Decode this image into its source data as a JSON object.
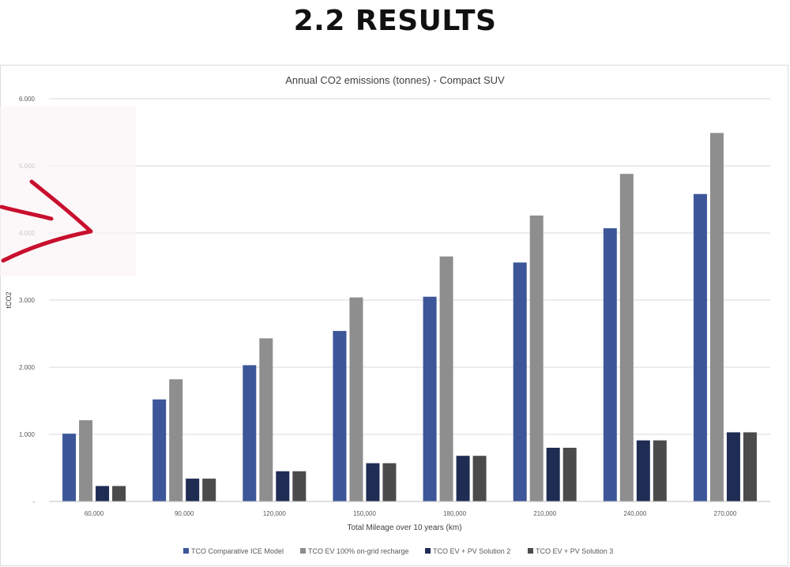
{
  "page_heading": "2.2 RESULTS",
  "colors": {
    "series": [
      "#3d5699",
      "#8e8e8e",
      "#1f2c54",
      "#4b4b4b"
    ],
    "arrow": "#c8102e",
    "grid": "#d9d9d9"
  },
  "chart_data": {
    "type": "bar",
    "title": "Annual CO2 emissions (tonnes) - Compact SUV",
    "xlabel": "Total Mileage over 10 years (km)",
    "ylabel": "tCO2",
    "ylim": [
      0,
      6
    ],
    "yticks": [
      "-",
      "1.000",
      "2.000",
      "3.000",
      "4.000",
      "5.000",
      "6.000"
    ],
    "grid": true,
    "legend_position": "bottom",
    "categories": [
      "60,000",
      "90,000",
      "120,000",
      "150,000",
      "180,000",
      "210,000",
      "240,000",
      "270,000"
    ],
    "series": [
      {
        "name": "TCO Comparative ICE Model",
        "values": [
          1.01,
          1.52,
          2.03,
          2.54,
          3.05,
          3.56,
          4.07,
          4.58
        ]
      },
      {
        "name": "TCO EV 100% on-grid recharge",
        "values": [
          1.21,
          1.82,
          2.43,
          3.04,
          3.65,
          4.26,
          4.88,
          5.49
        ]
      },
      {
        "name": "TCO EV + PV Solution 2",
        "values": [
          0.23,
          0.34,
          0.45,
          0.57,
          0.68,
          0.8,
          0.91,
          1.03
        ]
      },
      {
        "name": "TCO EV + PV Solution 3",
        "values": [
          0.23,
          0.34,
          0.45,
          0.57,
          0.68,
          0.8,
          0.91,
          1.03
        ]
      }
    ]
  }
}
